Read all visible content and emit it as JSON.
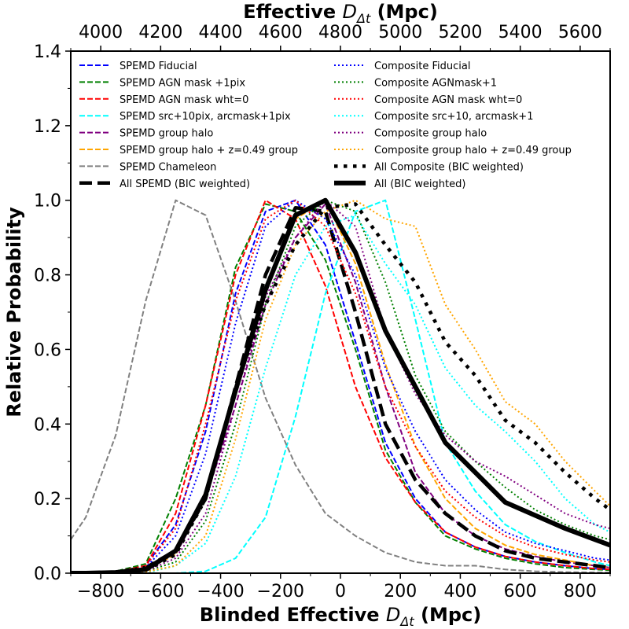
{
  "chart_data": {
    "type": "line",
    "xlabel_bottom": "Blinded Effective ",
    "xlabel_top": "Effective ",
    "xlabel_symbol": "D",
    "xlabel_subscript": "Δt",
    "xlabel_unit": " (Mpc)",
    "ylabel": "Relative Probability",
    "xlim": [
      -900,
      900
    ],
    "ylim": [
      0,
      1.4
    ],
    "top_axis_offset": 4800,
    "xticks_bottom": [
      -800,
      -600,
      -400,
      -200,
      0,
      200,
      400,
      600,
      800
    ],
    "xticks_top": [
      4000,
      4200,
      4400,
      4600,
      4800,
      5000,
      5200,
      5400,
      5600
    ],
    "yticks": [
      0.0,
      0.2,
      0.4,
      0.6,
      0.8,
      1.0,
      1.2,
      1.4
    ],
    "ytick_labels": [
      "0.0",
      "0.2",
      "0.4",
      "0.6",
      "0.8",
      "1.0",
      "1.2",
      "1.4"
    ],
    "x": [
      -900,
      -850,
      -750,
      -650,
      -550,
      -450,
      -350,
      -250,
      -150,
      -50,
      50,
      150,
      250,
      350,
      450,
      550,
      650,
      750,
      850,
      900
    ],
    "series": [
      {
        "name": "SPEMD Fiducial",
        "color": "#0000ff",
        "dash": "dashed",
        "width": 2,
        "values": [
          0,
          0,
          0.005,
          0.02,
          0.13,
          0.38,
          0.75,
          0.97,
          1.0,
          0.88,
          0.62,
          0.35,
          0.2,
          0.11,
          0.07,
          0.045,
          0.03,
          0.02,
          0.012,
          0.01
        ]
      },
      {
        "name": "SPEMD AGN mask +1pix",
        "color": "#008000",
        "dash": "dashed",
        "width": 2,
        "values": [
          0,
          0,
          0.005,
          0.025,
          0.2,
          0.45,
          0.82,
          0.99,
          0.97,
          0.84,
          0.6,
          0.33,
          0.19,
          0.1,
          0.065,
          0.04,
          0.025,
          0.015,
          0.01,
          0.008
        ]
      },
      {
        "name": "SPEMD AGN mask wht=0",
        "color": "#ff0000",
        "dash": "dashed",
        "width": 2,
        "values": [
          0,
          0,
          0.004,
          0.02,
          0.16,
          0.45,
          0.8,
          1.0,
          0.95,
          0.77,
          0.5,
          0.31,
          0.19,
          0.11,
          0.07,
          0.045,
          0.03,
          0.02,
          0.012,
          0.01
        ]
      },
      {
        "name": "SPEMD src+10pix, arcmask+1pix",
        "color": "#00ffff",
        "dash": "dashed",
        "width": 2,
        "values": [
          0,
          0,
          0,
          0,
          0,
          0.005,
          0.04,
          0.15,
          0.42,
          0.75,
          0.97,
          1.0,
          0.68,
          0.35,
          0.22,
          0.13,
          0.085,
          0.055,
          0.03,
          0.02
        ]
      },
      {
        "name": "SPEMD group halo",
        "color": "#800080",
        "dash": "dashed",
        "width": 2,
        "values": [
          0,
          0,
          0.002,
          0.01,
          0.05,
          0.2,
          0.45,
          0.72,
          0.9,
          0.99,
          0.78,
          0.5,
          0.27,
          0.16,
          0.1,
          0.065,
          0.045,
          0.03,
          0.02,
          0.015
        ]
      },
      {
        "name": "SPEMD group halo + z=0.49 group",
        "color": "#ffa500",
        "dash": "dashed",
        "width": 2,
        "values": [
          0,
          0,
          0.002,
          0.01,
          0.05,
          0.22,
          0.5,
          0.75,
          0.95,
          1.0,
          0.83,
          0.56,
          0.34,
          0.2,
          0.12,
          0.075,
          0.05,
          0.035,
          0.02,
          0.015
        ]
      },
      {
        "name": "SPEMD Chameleon",
        "color": "#808080",
        "dash": "dashed",
        "width": 2,
        "values": [
          0.09,
          0.15,
          0.37,
          0.73,
          1.0,
          0.96,
          0.73,
          0.47,
          0.29,
          0.16,
          0.1,
          0.055,
          0.03,
          0.02,
          0.02,
          0.01,
          0.005,
          0.003,
          0.002,
          0.002
        ]
      },
      {
        "name": "All SPEMD (BIC weighted)",
        "color": "#000000",
        "dash": "bigdash",
        "width": 4.5,
        "values": [
          0,
          0,
          0.003,
          0.015,
          0.06,
          0.2,
          0.5,
          0.8,
          0.98,
          0.97,
          0.7,
          0.4,
          0.25,
          0.16,
          0.1,
          0.06,
          0.04,
          0.03,
          0.02,
          0.015
        ]
      },
      {
        "name": "Composite Fiducial",
        "color": "#0000ff",
        "dash": "dotted",
        "width": 2,
        "values": [
          0,
          0,
          0.003,
          0.015,
          0.1,
          0.32,
          0.67,
          0.93,
          1.0,
          0.95,
          0.8,
          0.55,
          0.38,
          0.25,
          0.17,
          0.11,
          0.08,
          0.06,
          0.04,
          0.035
        ]
      },
      {
        "name": "Composite AGNmask+1",
        "color": "#008000",
        "dash": "dotted",
        "width": 2,
        "values": [
          0,
          0,
          0.001,
          0.005,
          0.03,
          0.14,
          0.4,
          0.72,
          0.93,
          1.0,
          0.97,
          0.78,
          0.53,
          0.38,
          0.3,
          0.23,
          0.17,
          0.13,
          0.1,
          0.09
        ]
      },
      {
        "name": "Composite AGN mask wht=0",
        "color": "#ff0000",
        "dash": "dotted",
        "width": 2,
        "values": [
          0,
          0,
          0.003,
          0.02,
          0.12,
          0.4,
          0.73,
          0.95,
          1.0,
          0.93,
          0.75,
          0.5,
          0.34,
          0.22,
          0.15,
          0.1,
          0.07,
          0.05,
          0.035,
          0.03
        ]
      },
      {
        "name": "Composite src+10, arcmask+1",
        "color": "#00ffff",
        "dash": "dotted",
        "width": 2,
        "values": [
          0,
          0,
          0,
          0,
          0.02,
          0.08,
          0.26,
          0.55,
          0.8,
          0.93,
          0.96,
          0.83,
          0.72,
          0.55,
          0.45,
          0.38,
          0.3,
          0.2,
          0.13,
          0.11
        ]
      },
      {
        "name": "Composite group halo",
        "color": "#800080",
        "dash": "dotted",
        "width": 2,
        "values": [
          0,
          0,
          0.001,
          0.005,
          0.04,
          0.16,
          0.45,
          0.74,
          0.9,
          1.0,
          0.93,
          0.65,
          0.48,
          0.37,
          0.3,
          0.26,
          0.21,
          0.16,
          0.13,
          0.12
        ]
      },
      {
        "name": "Composite group halo + z=0.49 group",
        "color": "#ffa500",
        "dash": "dotted",
        "width": 2,
        "values": [
          0,
          0,
          0,
          0.003,
          0.02,
          0.1,
          0.36,
          0.68,
          0.88,
          0.97,
          1.0,
          0.95,
          0.93,
          0.72,
          0.6,
          0.46,
          0.4,
          0.3,
          0.22,
          0.18
        ]
      },
      {
        "name": "All Composite (BIC weighted)",
        "color": "#000000",
        "dash": "bigdot",
        "width": 4.5,
        "values": [
          0,
          0,
          0.001,
          0.008,
          0.05,
          0.2,
          0.5,
          0.72,
          0.88,
          0.98,
          0.99,
          0.88,
          0.78,
          0.62,
          0.53,
          0.41,
          0.35,
          0.27,
          0.2,
          0.17
        ]
      },
      {
        "name": "All (BIC weighted)",
        "color": "#000000",
        "dash": "solid",
        "width": 6,
        "values": [
          0,
          0,
          0.002,
          0.01,
          0.06,
          0.21,
          0.49,
          0.76,
          0.96,
          1.0,
          0.86,
          0.65,
          0.5,
          0.35,
          0.27,
          0.19,
          0.155,
          0.12,
          0.09,
          0.075
        ]
      }
    ]
  }
}
